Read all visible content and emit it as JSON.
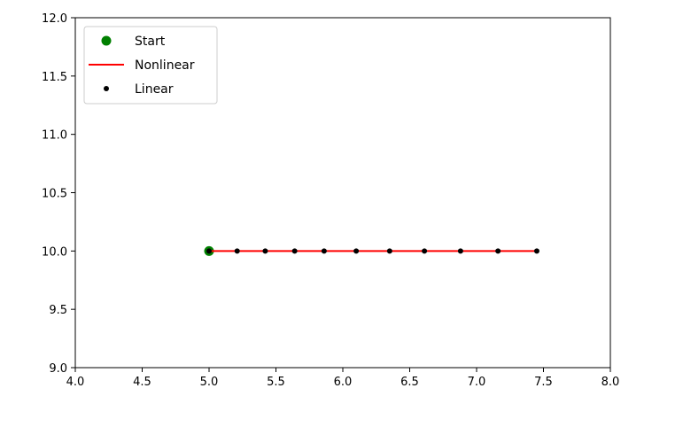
{
  "chart_data": {
    "type": "line",
    "title": "",
    "xlabel": "",
    "ylabel": "",
    "xlim": [
      4.0,
      8.0
    ],
    "ylim": [
      9.0,
      12.0
    ],
    "grid": false,
    "legend_position": "top-left",
    "x_ticks": [
      4.0,
      4.5,
      5.0,
      5.5,
      6.0,
      6.5,
      7.0,
      7.5,
      8.0
    ],
    "x_tick_labels": [
      "4.0",
      "4.5",
      "5.0",
      "5.5",
      "6.0",
      "6.5",
      "7.0",
      "7.5",
      "8.0"
    ],
    "y_ticks": [
      9.0,
      9.5,
      10.0,
      10.5,
      11.0,
      11.5,
      12.0
    ],
    "y_tick_labels": [
      "9.0",
      "9.5",
      "10.0",
      "10.5",
      "11.0",
      "11.5",
      "12.0"
    ],
    "series": [
      {
        "name": "Start",
        "kind": "marker",
        "color": "#008000",
        "x": [
          5.0
        ],
        "y": [
          10.0
        ]
      },
      {
        "name": "Nonlinear",
        "kind": "line",
        "color": "#ff0000",
        "x": [
          5.0,
          7.45
        ],
        "y": [
          10.0,
          10.0
        ]
      },
      {
        "name": "Linear",
        "kind": "points",
        "color": "#000000",
        "x": [
          5.0,
          5.21,
          5.42,
          5.64,
          5.86,
          6.1,
          6.35,
          6.61,
          6.88,
          7.16,
          7.45
        ],
        "y": [
          10.0,
          10.0,
          10.0,
          10.0,
          10.0,
          10.0,
          10.0,
          10.0,
          10.0,
          10.0,
          10.0
        ]
      }
    ]
  }
}
